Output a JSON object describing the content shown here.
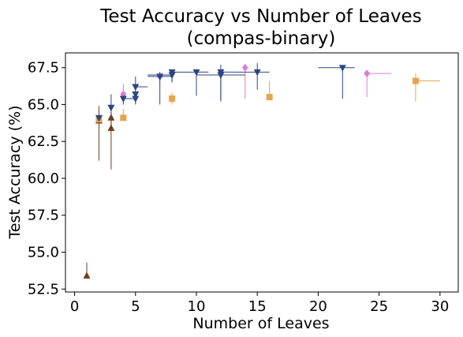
{
  "chart_data": {
    "type": "scatter",
    "title_lines": [
      "Test Accuracy vs Number of Leaves",
      "(compas-binary)"
    ],
    "xlabel": "Number of Leaves",
    "ylabel": "Test Accuracy (%)",
    "xlim": [
      -0.75,
      31.5
    ],
    "ylim": [
      52.3,
      68.5
    ],
    "xticks": [
      0,
      5,
      10,
      15,
      20,
      25,
      30
    ],
    "yticks": [
      52.5,
      55.0,
      57.5,
      60.0,
      62.5,
      65.0,
      67.5
    ],
    "ytick_labels": [
      "52.5",
      "55.0",
      "57.5",
      "60.0",
      "62.5",
      "65.0",
      "67.5"
    ],
    "grid": false,
    "legend": "none",
    "series": [
      {
        "marker": "triangle-up",
        "color": "#6b3f1f",
        "points": [
          {
            "x": 1,
            "y": 53.4,
            "ylo": 53.2,
            "yhi": 54.3,
            "xlo": 1,
            "xhi": 1
          },
          {
            "x": 2,
            "y": 63.9,
            "ylo": 61.2,
            "yhi": 64.9,
            "xlo": 2,
            "xhi": 2
          },
          {
            "x": 3,
            "y": 63.4,
            "ylo": 60.6,
            "yhi": 64.2,
            "xlo": 3,
            "xhi": 3
          },
          {
            "x": 3,
            "y": 64.1,
            "ylo": 63.5,
            "yhi": 64.5,
            "xlo": 3,
            "xhi": 3
          }
        ]
      },
      {
        "marker": "square",
        "color": "#e8a44b",
        "points": [
          {
            "x": 2,
            "y": 64.0,
            "ylo": 63.8,
            "yhi": 64.2,
            "xlo": 2,
            "xhi": 2
          },
          {
            "x": 4,
            "y": 64.1,
            "ylo": 63.9,
            "yhi": 64.7,
            "xlo": 4,
            "xhi": 4
          },
          {
            "x": 8,
            "y": 65.4,
            "ylo": 65.0,
            "yhi": 65.8,
            "xlo": 8,
            "xhi": 8
          },
          {
            "x": 16,
            "y": 65.5,
            "ylo": 65.3,
            "yhi": 66.6,
            "xlo": 16,
            "xhi": 16
          },
          {
            "x": 28,
            "y": 66.6,
            "ylo": 65.2,
            "yhi": 67.1,
            "xlo": 28,
            "xhi": 30
          }
        ]
      },
      {
        "marker": "diamond",
        "color": "#d97ed8",
        "points": [
          {
            "x": 4,
            "y": 65.7,
            "ylo": 65.2,
            "yhi": 66.4,
            "xlo": 4,
            "xhi": 4
          },
          {
            "x": 7,
            "y": 66.9,
            "ylo": 66.4,
            "yhi": 67.2,
            "xlo": 7,
            "xhi": 7
          },
          {
            "x": 14,
            "y": 67.5,
            "ylo": 65.4,
            "yhi": 67.7,
            "xlo": 14,
            "xhi": 14
          },
          {
            "x": 24,
            "y": 67.1,
            "ylo": 65.5,
            "yhi": 67.3,
            "xlo": 24,
            "xhi": 26
          }
        ]
      },
      {
        "marker": "triangle-down",
        "color": "#2c4585",
        "points": [
          {
            "x": 2,
            "y": 64.1,
            "ylo": 63.9,
            "yhi": 64.3,
            "xlo": 2,
            "xhi": 2
          },
          {
            "x": 3,
            "y": 64.8,
            "ylo": 64.3,
            "yhi": 65.7,
            "xlo": 3,
            "xhi": 3
          },
          {
            "x": 4,
            "y": 65.4,
            "ylo": 65.0,
            "yhi": 65.6,
            "xlo": 4,
            "xhi": 5
          },
          {
            "x": 5,
            "y": 65.7,
            "ylo": 65.3,
            "yhi": 65.9,
            "xlo": 5,
            "xhi": 5
          },
          {
            "x": 5,
            "y": 65.4,
            "ylo": 65.0,
            "yhi": 65.6,
            "xlo": 4,
            "xhi": 5
          },
          {
            "x": 5,
            "y": 66.2,
            "ylo": 65.8,
            "yhi": 66.9,
            "xlo": 5,
            "xhi": 6
          },
          {
            "x": 7,
            "y": 66.9,
            "ylo": 65.0,
            "yhi": 67.2,
            "xlo": 6,
            "xhi": 8
          },
          {
            "x": 8,
            "y": 67.0,
            "ylo": 66.5,
            "yhi": 67.3,
            "xlo": 6,
            "xhi": 8
          },
          {
            "x": 8,
            "y": 67.2,
            "ylo": 66.6,
            "yhi": 67.3,
            "xlo": 8,
            "xhi": 10
          },
          {
            "x": 10,
            "y": 67.2,
            "ylo": 65.6,
            "yhi": 67.4,
            "xlo": 10,
            "xhi": 11
          },
          {
            "x": 12,
            "y": 67.0,
            "ylo": 65.2,
            "yhi": 67.3,
            "xlo": 10,
            "xhi": 14
          },
          {
            "x": 12,
            "y": 67.2,
            "ylo": 65.3,
            "yhi": 67.7,
            "xlo": 12,
            "xhi": 13
          },
          {
            "x": 15,
            "y": 67.2,
            "ylo": 66.0,
            "yhi": 67.8,
            "xlo": 13,
            "xhi": 16
          },
          {
            "x": 22,
            "y": 67.5,
            "ylo": 65.4,
            "yhi": 67.6,
            "xlo": 20,
            "xhi": 23
          }
        ]
      }
    ]
  }
}
